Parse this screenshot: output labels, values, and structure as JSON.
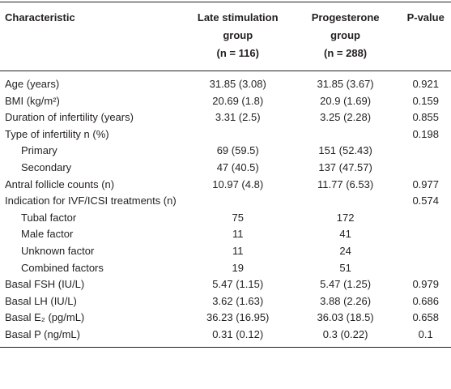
{
  "table": {
    "header": [
      [
        "Characteristic"
      ],
      [
        "Late stimulation",
        "group",
        "(n = 116)"
      ],
      [
        "Progesterone",
        "group",
        "(n = 288)"
      ],
      [
        "P-value"
      ]
    ],
    "rows": [
      [
        "Age (years)",
        "31.85 (3.08)",
        "31.85 (3.67)",
        "0.921"
      ],
      [
        "BMI (kg/m²)",
        "20.69 (1.8)",
        "20.9 (1.69)",
        "0.159"
      ],
      [
        "Duration of infertility (years)",
        "3.31 (2.5)",
        "3.25 (2.28)",
        "0.855"
      ],
      [
        "Type of infertility n (%)",
        null,
        null,
        "0.198"
      ],
      [
        "Primary",
        "69 (59.5)",
        "151 (52.43)",
        null
      ],
      [
        "Secondary",
        "47 (40.5)",
        "137 (47.57)",
        null
      ],
      [
        "Antral follicle counts (n)",
        "10.97 (4.8)",
        "11.77 (6.53)",
        "0.977"
      ],
      [
        "Indication for IVF/ICSI treatments (n)",
        null,
        null,
        "0.574"
      ],
      [
        "Tubal factor",
        "75",
        "172",
        null
      ],
      [
        "Male factor",
        "11",
        "41",
        null
      ],
      [
        "Unknown factor",
        "11",
        "24",
        null
      ],
      [
        "Combined factors",
        "19",
        "51",
        null
      ],
      [
        "Basal FSH (IU/L)",
        "5.47 (1.15)",
        "5.47 (1.25)",
        "0.979"
      ],
      [
        "Basal LH (IU/L)",
        "3.62 (1.63)",
        "3.88 (2.26)",
        "0.686"
      ],
      [
        "Basal E₂ (pg/mL)",
        "36.23 (16.95)",
        "36.03 (18.5)",
        "0.658"
      ],
      [
        "Basal P (ng/mL)",
        "0.31 (0.12)",
        "0.3 (0.22)",
        "0.1"
      ]
    ]
  }
}
